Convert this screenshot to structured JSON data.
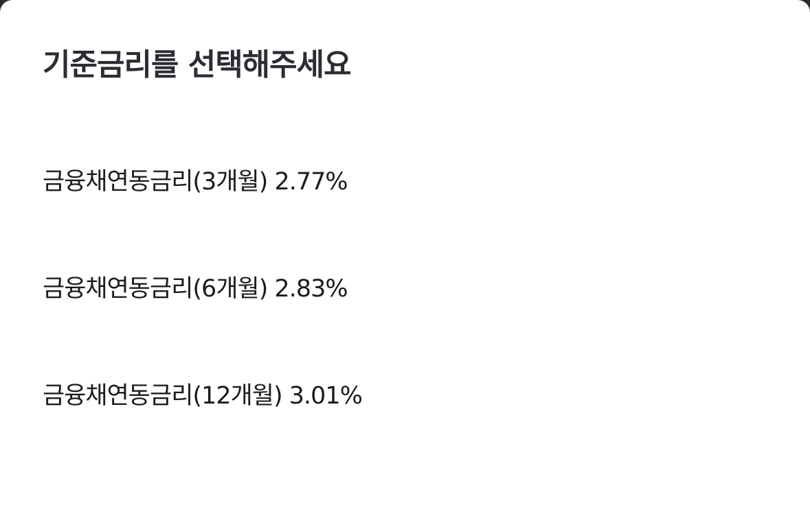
{
  "sheet": {
    "title": "기준금리를 선택해주세요",
    "options": [
      {
        "label": "금융채연동금리(3개월) 2.77%"
      },
      {
        "label": "금융채연동금리(6개월) 2.83%"
      },
      {
        "label": "금융채연동금리(12개월) 3.01%"
      }
    ]
  }
}
